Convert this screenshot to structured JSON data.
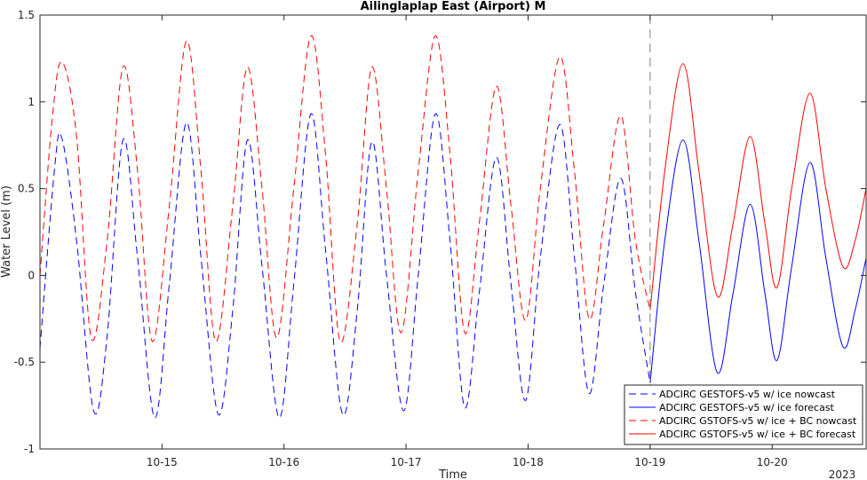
{
  "chart_data": {
    "type": "line",
    "title": "Ailinglaplap East (Airport) M",
    "xlabel": "Time",
    "ylabel": "Water Level (m)",
    "year_label": "2023",
    "x_unit": "days (October 2023)",
    "xlim": [
      14.0,
      20.77
    ],
    "ylim": [
      -1,
      1.5
    ],
    "yticks": [
      -1,
      -0.5,
      0,
      0.5,
      1,
      1.5
    ],
    "ytick_labels": [
      "-1",
      "-0.5",
      "0",
      "0.5",
      "1",
      "1.5"
    ],
    "xticks": [
      15,
      16,
      17,
      18,
      19,
      20
    ],
    "xtick_labels": [
      "10-15",
      "10-16",
      "10-17",
      "10-18",
      "10-19",
      "10-20"
    ],
    "grid": false,
    "legend_position": "bottom-right",
    "nowcast_forecast_boundary": 19.0,
    "series": [
      {
        "name": "ADCIRC GESTOFS-v5 w/ ice nowcast",
        "color": "#0000ff",
        "style": "dashed",
        "points": [
          [
            14.0,
            -0.42
          ],
          [
            14.12,
            0.62
          ],
          [
            14.18,
            0.79
          ],
          [
            14.3,
            0.2
          ],
          [
            14.44,
            -0.78
          ],
          [
            14.55,
            -0.35
          ],
          [
            14.68,
            0.78
          ],
          [
            14.8,
            0.1
          ],
          [
            14.94,
            -0.82
          ],
          [
            15.06,
            -0.05
          ],
          [
            15.2,
            0.88
          ],
          [
            15.32,
            0.1
          ],
          [
            15.46,
            -0.8
          ],
          [
            15.58,
            -0.2
          ],
          [
            15.7,
            0.78
          ],
          [
            15.82,
            0.05
          ],
          [
            15.96,
            -0.82
          ],
          [
            16.08,
            -0.05
          ],
          [
            16.22,
            0.93
          ],
          [
            16.34,
            0.15
          ],
          [
            16.48,
            -0.8
          ],
          [
            16.6,
            -0.2
          ],
          [
            16.72,
            0.77
          ],
          [
            16.84,
            0.0
          ],
          [
            16.98,
            -0.78
          ],
          [
            17.1,
            0.0
          ],
          [
            17.24,
            0.93
          ],
          [
            17.36,
            0.2
          ],
          [
            17.48,
            -0.76
          ],
          [
            17.6,
            -0.1
          ],
          [
            17.74,
            0.68
          ],
          [
            17.86,
            -0.05
          ],
          [
            17.98,
            -0.72
          ],
          [
            18.1,
            0.1
          ],
          [
            18.26,
            0.87
          ],
          [
            18.38,
            0.1
          ],
          [
            18.5,
            -0.68
          ],
          [
            18.62,
            -0.05
          ],
          [
            18.76,
            0.56
          ],
          [
            18.88,
            -0.1
          ],
          [
            19.0,
            -0.62
          ]
        ]
      },
      {
        "name": "ADCIRC GESTOFS-v5 w/ ice forecast",
        "color": "#0000ff",
        "style": "solid",
        "points": [
          [
            19.0,
            -0.62
          ],
          [
            19.12,
            0.2
          ],
          [
            19.27,
            0.78
          ],
          [
            19.4,
            0.2
          ],
          [
            19.55,
            -0.56
          ],
          [
            19.68,
            -0.1
          ],
          [
            19.82,
            0.41
          ],
          [
            19.94,
            -0.1
          ],
          [
            20.04,
            -0.49
          ],
          [
            20.16,
            0.05
          ],
          [
            20.31,
            0.65
          ],
          [
            20.44,
            0.1
          ],
          [
            20.58,
            -0.41
          ],
          [
            20.68,
            -0.2
          ],
          [
            20.77,
            0.1
          ]
        ]
      },
      {
        "name": "ADCIRC GSTOFS-v5 w/ ice + BC nowcast",
        "color": "#ff0000",
        "style": "dashed",
        "points": [
          [
            14.0,
            0.0
          ],
          [
            14.1,
            0.9
          ],
          [
            14.18,
            1.23
          ],
          [
            14.3,
            0.8
          ],
          [
            14.42,
            -0.36
          ],
          [
            14.55,
            0.2
          ],
          [
            14.68,
            1.2
          ],
          [
            14.8,
            0.6
          ],
          [
            14.92,
            -0.38
          ],
          [
            15.06,
            0.4
          ],
          [
            15.2,
            1.35
          ],
          [
            15.32,
            0.6
          ],
          [
            15.44,
            -0.38
          ],
          [
            15.58,
            0.4
          ],
          [
            15.7,
            1.2
          ],
          [
            15.82,
            0.5
          ],
          [
            15.94,
            -0.36
          ],
          [
            16.08,
            0.5
          ],
          [
            16.22,
            1.38
          ],
          [
            16.34,
            0.7
          ],
          [
            16.46,
            -0.38
          ],
          [
            16.6,
            0.3
          ],
          [
            16.72,
            1.2
          ],
          [
            16.84,
            0.5
          ],
          [
            16.96,
            -0.33
          ],
          [
            17.1,
            0.6
          ],
          [
            17.24,
            1.38
          ],
          [
            17.36,
            0.7
          ],
          [
            17.48,
            -0.33
          ],
          [
            17.6,
            0.3
          ],
          [
            17.74,
            1.09
          ],
          [
            17.86,
            0.4
          ],
          [
            17.98,
            -0.26
          ],
          [
            18.1,
            0.5
          ],
          [
            18.26,
            1.26
          ],
          [
            18.38,
            0.6
          ],
          [
            18.5,
            -0.25
          ],
          [
            18.62,
            0.3
          ],
          [
            18.76,
            0.92
          ],
          [
            18.88,
            0.2
          ],
          [
            19.0,
            -0.2
          ]
        ]
      },
      {
        "name": "ADCIRC GSTOFS-v5 w/ ice + BC forecast",
        "color": "#ff0000",
        "style": "solid",
        "points": [
          [
            19.0,
            -0.2
          ],
          [
            19.12,
            0.6
          ],
          [
            19.27,
            1.22
          ],
          [
            19.4,
            0.6
          ],
          [
            19.55,
            -0.12
          ],
          [
            19.68,
            0.3
          ],
          [
            19.82,
            0.8
          ],
          [
            19.94,
            0.3
          ],
          [
            20.04,
            -0.07
          ],
          [
            20.16,
            0.5
          ],
          [
            20.31,
            1.05
          ],
          [
            20.44,
            0.5
          ],
          [
            20.58,
            0.05
          ],
          [
            20.68,
            0.2
          ],
          [
            20.77,
            0.5
          ]
        ]
      }
    ]
  }
}
